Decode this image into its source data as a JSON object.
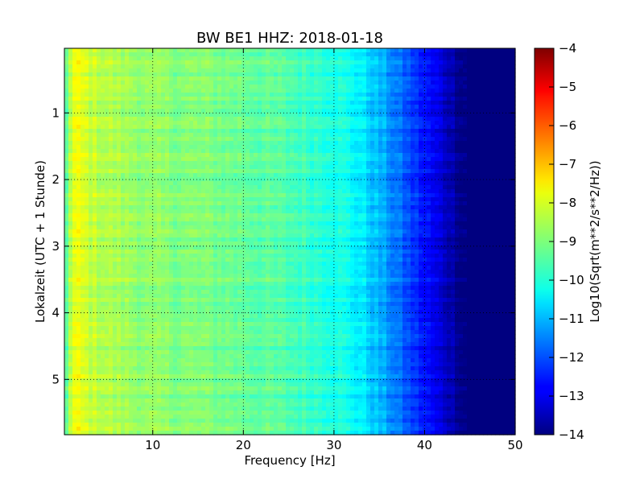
{
  "chart_data": {
    "type": "heatmap",
    "title": "BW BE1 HHZ: 2018-01-18",
    "xlabel": "Frequency [Hz]",
    "ylabel": "Lokalzeit (UTC + 1 Stunde)",
    "xlim": [
      0.25,
      50
    ],
    "ylim": [
      5.83,
      0.03
    ],
    "x_ticks": [
      10,
      20,
      30,
      40,
      50
    ],
    "x_tick_labels": [
      "10",
      "20",
      "30",
      "40",
      "50"
    ],
    "y_ticks": [
      1,
      2,
      3,
      4,
      5
    ],
    "y_tick_labels": [
      "1",
      "2",
      "3",
      "4",
      "5"
    ],
    "grid": true,
    "colormap": "jet",
    "colorbar": {
      "label": "Log10(Sqrt(m**2/s**2/Hz))",
      "min": -14,
      "max": -4,
      "ticks": [
        -4,
        -5,
        -6,
        -7,
        -8,
        -9,
        -10,
        -11,
        -12,
        -13,
        -14
      ],
      "tick_labels": [
        "−4",
        "−5",
        "−6",
        "−7",
        "−8",
        "−9",
        "−10",
        "−11",
        "−12",
        "−13",
        "−14"
      ]
    },
    "psd_profile": {
      "frequency_hz": [
        0.25,
        0.8,
        1.5,
        3,
        6,
        10,
        15,
        20,
        25,
        30,
        33,
        36,
        39,
        42,
        43.5,
        44.5,
        50
      ],
      "log10_psd": [
        -9.6,
        -8.6,
        -7.9,
        -8.3,
        -8.6,
        -8.9,
        -9.0,
        -9.2,
        -9.5,
        -9.9,
        -10.4,
        -11.3,
        -12.3,
        -13.2,
        -13.7,
        -14.0,
        -14.0
      ]
    }
  }
}
